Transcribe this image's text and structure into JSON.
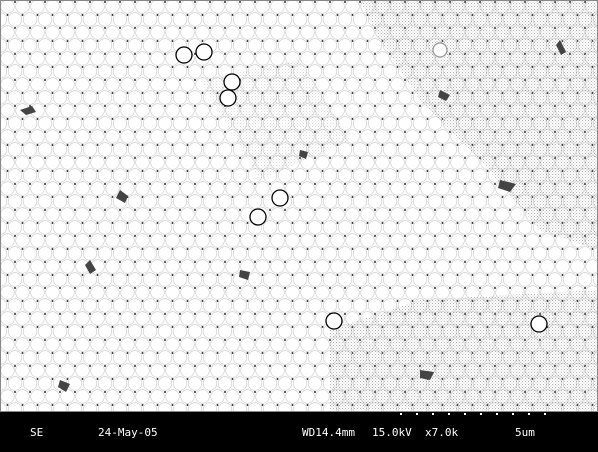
{
  "info_bar": {
    "detector": "SE",
    "date": "24-May-05",
    "working_distance": "WD14.4mm",
    "voltage": "15.0kV",
    "magnification": "x7.0k",
    "scale": "5um"
  }
}
